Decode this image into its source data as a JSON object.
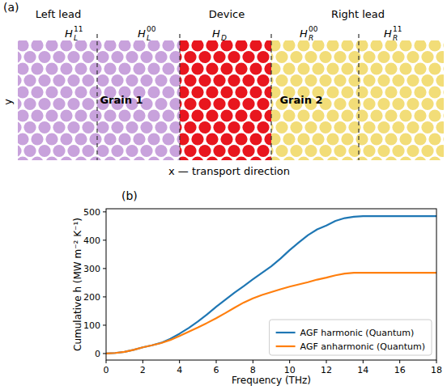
{
  "diagram": {
    "panel_label": "(a)",
    "regions": [
      {
        "label": "Left lead"
      },
      {
        "label": "Device"
      },
      {
        "label": "Right lead"
      }
    ],
    "blocks": [
      {
        "base": "H",
        "sub": "L",
        "sup": "11"
      },
      {
        "base": "H",
        "sub": "L",
        "sup": "00"
      },
      {
        "base": "H",
        "sub": "D",
        "sup": ""
      },
      {
        "base": "H",
        "sub": "R",
        "sup": "00"
      },
      {
        "base": "H",
        "sub": "R",
        "sup": "11"
      }
    ],
    "grains": [
      "Grain 1",
      "Grain 2"
    ],
    "y_axis_label": "y",
    "x_axis_label": "x — transport direction"
  },
  "chart_data": {
    "type": "line",
    "title": "(b)",
    "x_label": "Frequency (THz)",
    "y_label": "Cumulative h (MW m⁻² K⁻¹)",
    "x": [
      0,
      0.5,
      1,
      1.5,
      2,
      2.5,
      3,
      3.5,
      4,
      4.5,
      5,
      5.5,
      6,
      6.5,
      7,
      7.5,
      8,
      8.5,
      9,
      9.5,
      10,
      10.5,
      11,
      11.5,
      12,
      12.5,
      13,
      13.5,
      14,
      15,
      16,
      17,
      18
    ],
    "series": [
      {
        "name": "AGF harmonic (Quantum)",
        "color": "#1f77b4",
        "values": [
          0,
          2,
          6,
          13,
          22,
          29,
          38,
          52,
          70,
          90,
          113,
          138,
          165,
          190,
          215,
          238,
          262,
          285,
          308,
          335,
          365,
          392,
          418,
          438,
          452,
          468,
          478,
          483,
          485,
          485,
          485,
          485,
          485
        ]
      },
      {
        "name": "AGF anharmonic (Quantum)",
        "color": "#ff7f0e",
        "values": [
          0,
          2,
          6,
          13,
          22,
          29,
          37,
          48,
          62,
          77,
          92,
          108,
          125,
          143,
          162,
          180,
          195,
          207,
          217,
          227,
          236,
          244,
          252,
          261,
          268,
          276,
          282,
          285,
          285,
          285,
          285,
          285,
          285
        ]
      }
    ],
    "xlim": [
      0,
      18
    ],
    "ylim": [
      -23,
      511
    ],
    "xticks": [
      0,
      2,
      4,
      6,
      8,
      10,
      12,
      14,
      16,
      18
    ],
    "yticks": [
      0,
      100,
      200,
      300,
      400,
      500
    ],
    "grid": false,
    "legend": "lower right"
  }
}
